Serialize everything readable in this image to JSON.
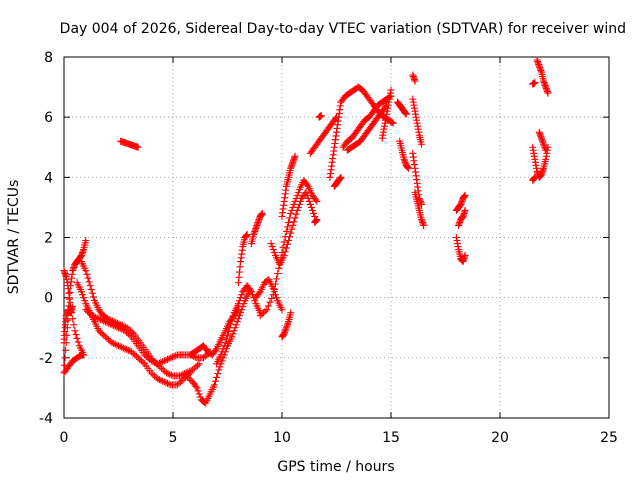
{
  "chart_data": {
    "type": "scatter",
    "title": "Day 004 of 2026, Sidereal Day-to-day VTEC variation (SDTVAR) for receiver wind",
    "xlabel": "GPS time / hours",
    "ylabel": "SDTVAR / TECUs",
    "xlim": [
      0,
      25
    ],
    "ylim": [
      -4,
      8
    ],
    "xticks": [
      0,
      5,
      10,
      15,
      20,
      25
    ],
    "yticks": [
      -4,
      -2,
      0,
      2,
      4,
      6,
      8
    ],
    "grid": true,
    "marker": "+",
    "color": "#ff0000",
    "series": [
      {
        "name": "SDTVAR",
        "segments": [
          {
            "x": [
              0.0,
              0.1,
              0.2,
              0.3,
              0.4,
              0.5,
              0.6,
              0.7,
              0.8,
              0.9,
              1.0
            ],
            "y": [
              -2.5,
              -1.5,
              -0.5,
              0.4,
              0.9,
              1.1,
              1.2,
              1.3,
              1.4,
              1.6,
              1.9
            ]
          },
          {
            "x": [
              0.0,
              0.1,
              0.2,
              0.3,
              0.5,
              0.7,
              0.9
            ],
            "y": [
              0.9,
              0.7,
              0.3,
              -0.3,
              -1.1,
              -1.6,
              -1.9
            ]
          },
          {
            "x": [
              0.0,
              0.05,
              0.1,
              0.2,
              0.3,
              0.4
            ],
            "y": [
              -1.5,
              -1.0,
              -0.6,
              -0.4,
              -0.5,
              -0.3
            ]
          },
          {
            "x": [
              0.0,
              0.2,
              0.4,
              0.6,
              0.8,
              0.9
            ],
            "y": [
              -2.5,
              -2.3,
              -2.1,
              -2.0,
              -1.9,
              -1.9
            ]
          },
          {
            "x": [
              0.8,
              1.0,
              1.2,
              1.4,
              1.6,
              1.8,
              2.0,
              2.3,
              2.6,
              2.9,
              3.2,
              3.5,
              3.8,
              4.1,
              4.4,
              4.7,
              5.0,
              5.3,
              5.6,
              5.9,
              6.2
            ],
            "y": [
              1.2,
              0.9,
              0.4,
              -0.1,
              -0.4,
              -0.6,
              -0.7,
              -0.8,
              -0.9,
              -1.0,
              -1.2,
              -1.5,
              -1.8,
              -2.1,
              -2.3,
              -2.5,
              -2.6,
              -2.6,
              -2.5,
              -2.4,
              -2.2
            ]
          },
          {
            "x": [
              0.6,
              0.8,
              1.0,
              1.2,
              1.4,
              1.6,
              1.9,
              2.2,
              2.5,
              2.8,
              3.1,
              3.4,
              3.7,
              4.0,
              4.3,
              4.6,
              4.9,
              5.2,
              5.5,
              5.8
            ],
            "y": [
              0.5,
              0.2,
              -0.2,
              -0.5,
              -0.8,
              -1.1,
              -1.3,
              -1.5,
              -1.6,
              -1.7,
              -1.8,
              -2.0,
              -2.2,
              -2.5,
              -2.7,
              -2.8,
              -2.9,
              -2.9,
              -2.7,
              -2.5
            ]
          },
          {
            "x": [
              1.0,
              1.3,
              1.6,
              1.9,
              2.2,
              2.5,
              2.8,
              3.1,
              3.4,
              3.7,
              4.0,
              4.3,
              4.6,
              4.9,
              5.2,
              5.5,
              5.8,
              6.1,
              6.4,
              6.7
            ],
            "y": [
              -0.4,
              -0.6,
              -0.7,
              -0.8,
              -0.9,
              -1.0,
              -1.1,
              -1.3,
              -1.6,
              -1.9,
              -2.1,
              -2.2,
              -2.1,
              -2.0,
              -1.9,
              -1.9,
              -1.9,
              -2.0,
              -2.0,
              -1.8
            ]
          },
          {
            "x": [
              2.6,
              2.8,
              3.0,
              3.2,
              3.4
            ],
            "y": [
              5.2,
              5.15,
              5.1,
              5.05,
              5.0
            ]
          },
          {
            "x": [
              5.6,
              5.9,
              6.1,
              6.3,
              6.5,
              6.7,
              6.9,
              7.1,
              7.3,
              7.5,
              7.7,
              7.9,
              8.1,
              8.3,
              8.5
            ],
            "y": [
              -2.6,
              -2.8,
              -3.0,
              -3.4,
              -3.5,
              -3.2,
              -2.9,
              -2.4,
              -2.0,
              -1.6,
              -1.3,
              -0.9,
              -0.5,
              -0.1,
              0.2
            ]
          },
          {
            "x": [
              5.8,
              6.0,
              6.2,
              6.4,
              6.6,
              6.8,
              7.0,
              7.2,
              7.4,
              7.6,
              7.8,
              8.0
            ],
            "y": [
              -1.9,
              -1.8,
              -1.7,
              -1.6,
              -1.8,
              -1.9,
              -1.7,
              -1.4,
              -1.1,
              -0.8,
              -0.6,
              -0.4
            ]
          },
          {
            "x": [
              7.0,
              7.2,
              7.4,
              7.6,
              7.8,
              8.0,
              8.2,
              8.4,
              8.6,
              8.8,
              9.0
            ],
            "y": [
              -2.2,
              -1.9,
              -1.5,
              -1.0,
              -0.5,
              -0.2,
              0.2,
              0.4,
              0.2,
              -0.2,
              -0.5
            ]
          },
          {
            "x": [
              8.0,
              8.1,
              8.2,
              8.3,
              8.4
            ],
            "y": [
              0.5,
              1.2,
              1.7,
              2.0,
              2.1
            ]
          },
          {
            "x": [
              8.6,
              8.7,
              8.8,
              8.9,
              9.0,
              9.1
            ],
            "y": [
              1.8,
              2.1,
              2.3,
              2.5,
              2.7,
              2.8
            ]
          },
          {
            "x": [
              8.8,
              9.0,
              9.2,
              9.4,
              9.6,
              9.8,
              10.0
            ],
            "y": [
              0.0,
              0.2,
              0.5,
              0.6,
              0.3,
              -0.1,
              -0.4
            ]
          },
          {
            "x": [
              9.0,
              9.3,
              9.6,
              9.8,
              10.0,
              10.2,
              10.4,
              10.6,
              10.8,
              11.0,
              11.2,
              11.4,
              11.6
            ],
            "y": [
              -0.6,
              -0.4,
              0.1,
              0.8,
              1.5,
              2.2,
              2.8,
              3.2,
              3.6,
              3.9,
              3.7,
              3.4,
              3.2
            ]
          },
          {
            "x": [
              9.5,
              9.7,
              9.9,
              10.1,
              10.3,
              10.5,
              10.7,
              10.9,
              11.1,
              11.3,
              11.5
            ],
            "y": [
              1.8,
              1.4,
              1.1,
              1.4,
              1.9,
              2.4,
              2.9,
              3.3,
              3.5,
              3.1,
              2.7
            ]
          },
          {
            "x": [
              10.0,
              10.1,
              10.2,
              10.3,
              10.4,
              10.5,
              10.6
            ],
            "y": [
              2.7,
              3.2,
              3.7,
              4.0,
              4.3,
              4.5,
              4.7
            ]
          },
          {
            "x": [
              10.0,
              10.1,
              10.2,
              10.3,
              10.4
            ],
            "y": [
              -1.3,
              -1.2,
              -1.0,
              -0.8,
              -0.5
            ]
          },
          {
            "x": [
              11.5,
              11.6
            ],
            "y": [
              2.5,
              2.6
            ]
          },
          {
            "x": [
              11.3,
              11.5,
              11.7,
              11.9,
              12.1,
              12.3,
              12.5
            ],
            "y": [
              4.8,
              5.0,
              5.2,
              5.4,
              5.6,
              5.8,
              6.0
            ]
          },
          {
            "x": [
              11.7,
              11.8
            ],
            "y": [
              6.0,
              6.05
            ]
          },
          {
            "x": [
              12.2,
              12.3,
              12.4,
              12.5,
              12.6,
              12.7
            ],
            "y": [
              4.0,
              4.5,
              5.0,
              5.5,
              6.0,
              6.5
            ]
          },
          {
            "x": [
              12.4,
              12.5,
              12.6,
              12.7
            ],
            "y": [
              3.7,
              3.8,
              3.9,
              4.0
            ]
          },
          {
            "x": [
              12.7,
              12.9,
              13.1,
              13.3,
              13.5,
              13.7,
              13.9,
              14.1,
              14.3,
              14.5,
              14.7,
              14.9,
              15.1
            ],
            "y": [
              6.5,
              6.7,
              6.8,
              6.9,
              7.0,
              6.9,
              6.7,
              6.5,
              6.3,
              6.1,
              6.0,
              5.9,
              5.8
            ]
          },
          {
            "x": [
              12.8,
              13.0,
              13.2,
              13.4,
              13.6,
              13.8,
              14.0,
              14.2,
              14.4,
              14.6,
              14.8,
              15.0
            ],
            "y": [
              5.0,
              5.2,
              5.3,
              5.5,
              5.7,
              5.9,
              6.0,
              6.2,
              6.4,
              6.5,
              6.6,
              6.7
            ]
          },
          {
            "x": [
              13.0,
              13.2,
              13.4,
              13.6,
              13.8,
              14.0,
              14.2,
              14.4,
              14.6,
              14.8
            ],
            "y": [
              4.9,
              5.0,
              5.1,
              5.2,
              5.4,
              5.6,
              5.8,
              6.0,
              6.2,
              6.4
            ]
          },
          {
            "x": [
              14.6,
              14.7,
              14.8,
              14.9,
              15.0
            ],
            "y": [
              5.3,
              5.7,
              6.1,
              6.5,
              6.9
            ]
          },
          {
            "x": [
              15.3,
              15.4,
              15.5,
              15.6,
              15.7
            ],
            "y": [
              6.5,
              6.4,
              6.3,
              6.2,
              6.1
            ]
          },
          {
            "x": [
              15.4,
              15.5,
              15.6,
              15.7,
              15.8
            ],
            "y": [
              5.2,
              4.9,
              4.6,
              4.4,
              4.3
            ]
          },
          {
            "x": [
              16.0,
              16.1
            ],
            "y": [
              7.4,
              7.2
            ]
          },
          {
            "x": [
              16.0,
              16.1,
              16.2,
              16.3,
              16.4
            ],
            "y": [
              6.6,
              6.2,
              5.8,
              5.4,
              5.1
            ]
          },
          {
            "x": [
              16.0,
              16.1,
              16.2,
              16.3,
              16.4
            ],
            "y": [
              4.8,
              4.3,
              3.8,
              3.3,
              3.1
            ]
          },
          {
            "x": [
              16.1,
              16.2,
              16.3,
              16.4,
              16.5
            ],
            "y": [
              3.5,
              3.2,
              2.9,
              2.6,
              2.4
            ]
          },
          {
            "x": [
              18.0,
              18.1,
              18.2,
              18.3,
              18.4
            ],
            "y": [
              2.9,
              3.0,
              3.1,
              3.3,
              3.4
            ]
          },
          {
            "x": [
              18.0,
              18.1,
              18.2,
              18.3,
              18.4
            ],
            "y": [
              2.0,
              1.6,
              1.3,
              1.2,
              1.4
            ]
          },
          {
            "x": [
              18.1,
              18.2,
              18.3,
              18.4
            ],
            "y": [
              2.4,
              2.6,
              2.7,
              2.9
            ]
          },
          {
            "x": [
              21.5,
              21.6
            ],
            "y": [
              7.1,
              7.15
            ]
          },
          {
            "x": [
              21.7,
              21.8,
              21.9,
              22.0,
              22.1,
              22.2
            ],
            "y": [
              7.9,
              7.7,
              7.5,
              7.2,
              7.0,
              6.8
            ]
          },
          {
            "x": [
              21.5,
              21.6,
              21.7,
              21.8,
              21.9,
              22.0,
              22.1,
              22.2
            ],
            "y": [
              5.0,
              4.6,
              4.2,
              4.0,
              4.1,
              4.3,
              4.6,
              5.0
            ]
          },
          {
            "x": [
              21.5,
              21.6
            ],
            "y": [
              3.9,
              4.0
            ]
          },
          {
            "x": [
              21.8,
              21.9,
              22.0,
              22.1
            ],
            "y": [
              5.5,
              5.3,
              5.1,
              4.9
            ]
          }
        ]
      }
    ]
  }
}
